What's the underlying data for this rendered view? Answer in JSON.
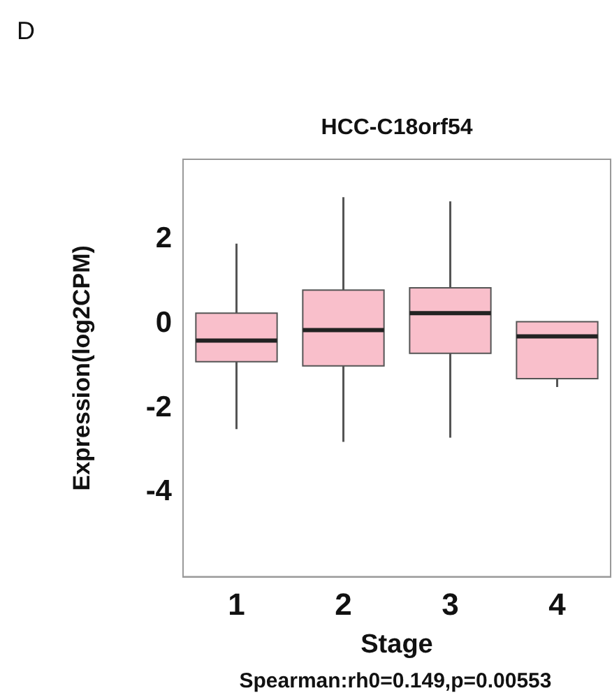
{
  "chart_data": {
    "type": "box",
    "title": "HCC-C18orf54",
    "xlabel": "Stage",
    "ylabel": "Expression(log2CPM)",
    "annotations": [
      "D",
      "Spearman:rh0=0.149,p=0.00553"
    ],
    "categories": [
      "1",
      "2",
      "3",
      "4"
    ],
    "boxes": [
      {
        "low": -2.5,
        "q1": -0.9,
        "median": -0.4,
        "q3": 0.25,
        "high": 1.9
      },
      {
        "low": -2.8,
        "q1": -1,
        "median": -0.15,
        "q3": 0.8,
        "high": 3
      },
      {
        "low": -2.7,
        "q1": -0.7,
        "median": 0.25,
        "q3": 0.85,
        "high": 2.9
      },
      {
        "low": -1.5,
        "q1": -1.3,
        "median": -0.3,
        "q3": 0.05,
        "high": 0.05
      }
    ],
    "color": "#f9bfcb",
    "ylim": [
      -6,
      3.9
    ],
    "yticks": [
      -4,
      -2,
      0,
      2
    ],
    "grid": false,
    "legend": false
  }
}
